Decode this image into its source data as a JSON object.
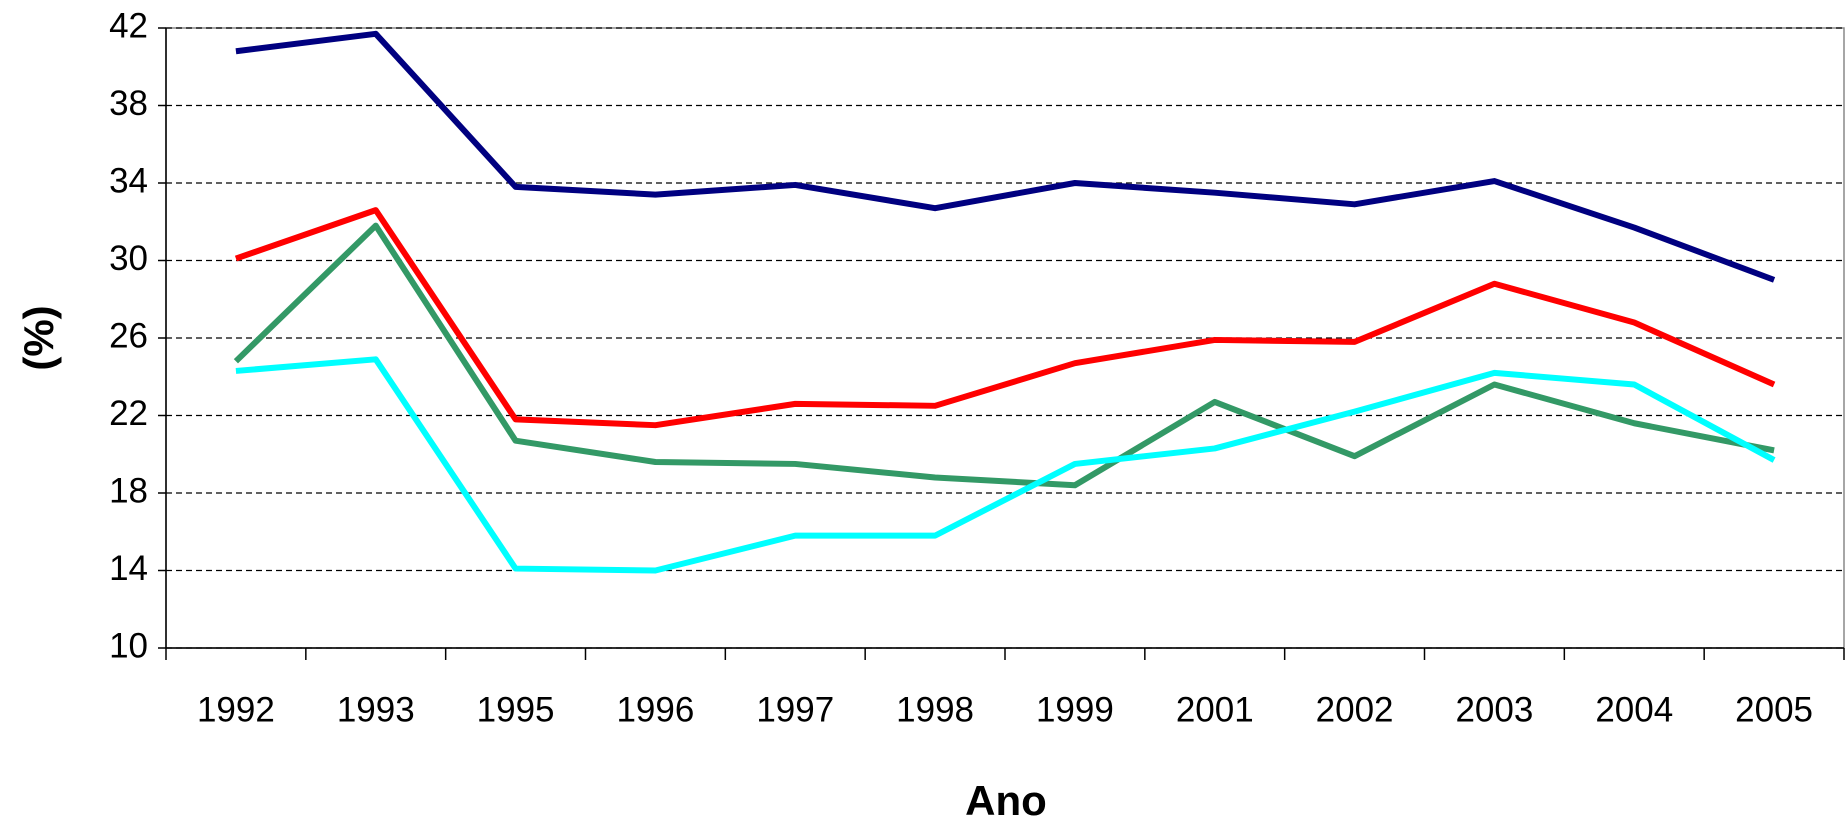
{
  "chart_data": {
    "type": "line",
    "x_label": "Ano",
    "y_label": "(%)",
    "categories": [
      "1992",
      "1993",
      "1995",
      "1996",
      "1997",
      "1998",
      "1999",
      "2001",
      "2002",
      "2003",
      "2004",
      "2005"
    ],
    "series": [
      {
        "color": "#000080",
        "values": [
          40.8,
          41.7,
          33.8,
          33.4,
          33.9,
          32.7,
          34.0,
          33.5,
          32.9,
          34.1,
          31.7,
          29.0
        ]
      },
      {
        "color": "#ff0000",
        "values": [
          30.1,
          32.6,
          21.8,
          21.5,
          22.6,
          22.5,
          24.7,
          25.9,
          25.8,
          28.8,
          26.8,
          23.6
        ]
      },
      {
        "color": "#339966",
        "values": [
          24.8,
          31.8,
          20.7,
          19.6,
          19.5,
          18.8,
          18.4,
          22.7,
          19.9,
          23.6,
          21.6,
          20.2
        ]
      },
      {
        "color": "#00ffff",
        "values": [
          24.3,
          24.9,
          14.1,
          14.0,
          15.8,
          15.8,
          19.5,
          20.3,
          22.2,
          24.2,
          23.6,
          19.7
        ]
      }
    ],
    "ylim": [
      10,
      42
    ],
    "yticks": [
      10,
      14,
      18,
      22,
      26,
      30,
      34,
      38,
      42
    ],
    "grid": true
  }
}
